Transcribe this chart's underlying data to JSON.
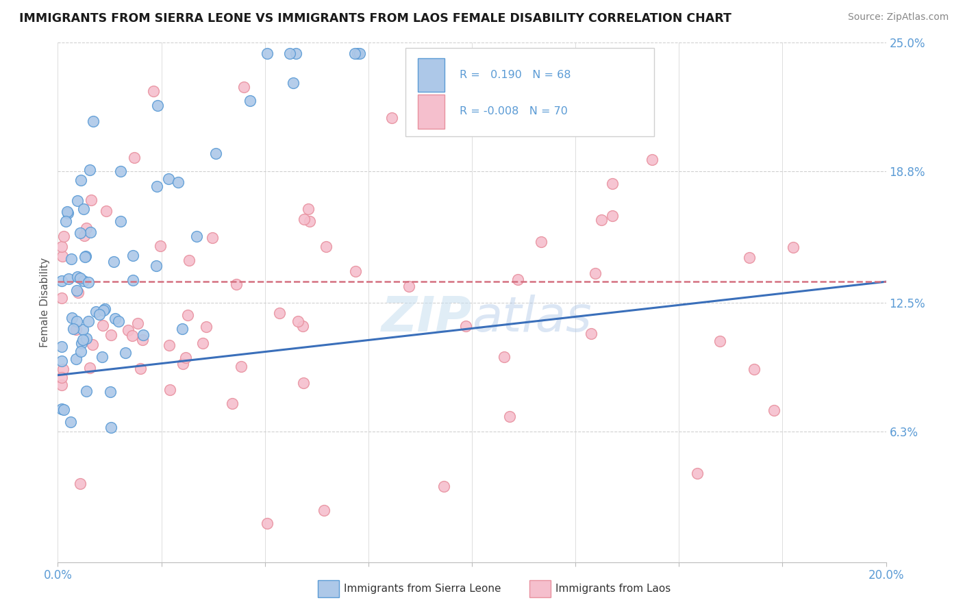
{
  "title": "IMMIGRANTS FROM SIERRA LEONE VS IMMIGRANTS FROM LAOS FEMALE DISABILITY CORRELATION CHART",
  "source": "Source: ZipAtlas.com",
  "ylabel": "Female Disability",
  "xlim": [
    0.0,
    0.2
  ],
  "ylim": [
    0.0,
    0.25
  ],
  "xticks": [
    0.0,
    0.025,
    0.05,
    0.075,
    0.1,
    0.125,
    0.15,
    0.175,
    0.2
  ],
  "xticklabels": [
    "0.0%",
    "",
    "",
    "",
    "",
    "",
    "",
    "",
    "20.0%"
  ],
  "ytick_positions": [
    0.063,
    0.125,
    0.188,
    0.25
  ],
  "yticklabels": [
    "6.3%",
    "12.5%",
    "18.8%",
    "25.0%"
  ],
  "legend_r1": "0.190",
  "legend_n1": "68",
  "legend_r2": "-0.008",
  "legend_n2": "70",
  "color_blue_fill": "#adc8e8",
  "color_pink_fill": "#f5bfcd",
  "color_blue_edge": "#5b9bd5",
  "color_pink_edge": "#e8919f",
  "trendline_blue": "#3a6fba",
  "trendline_pink": "#d47080",
  "label1": "Immigrants from Sierra Leone",
  "label2": "Immigrants from Laos",
  "watermark": "ZIPatlas",
  "sl_seed": 7,
  "laos_seed": 13
}
